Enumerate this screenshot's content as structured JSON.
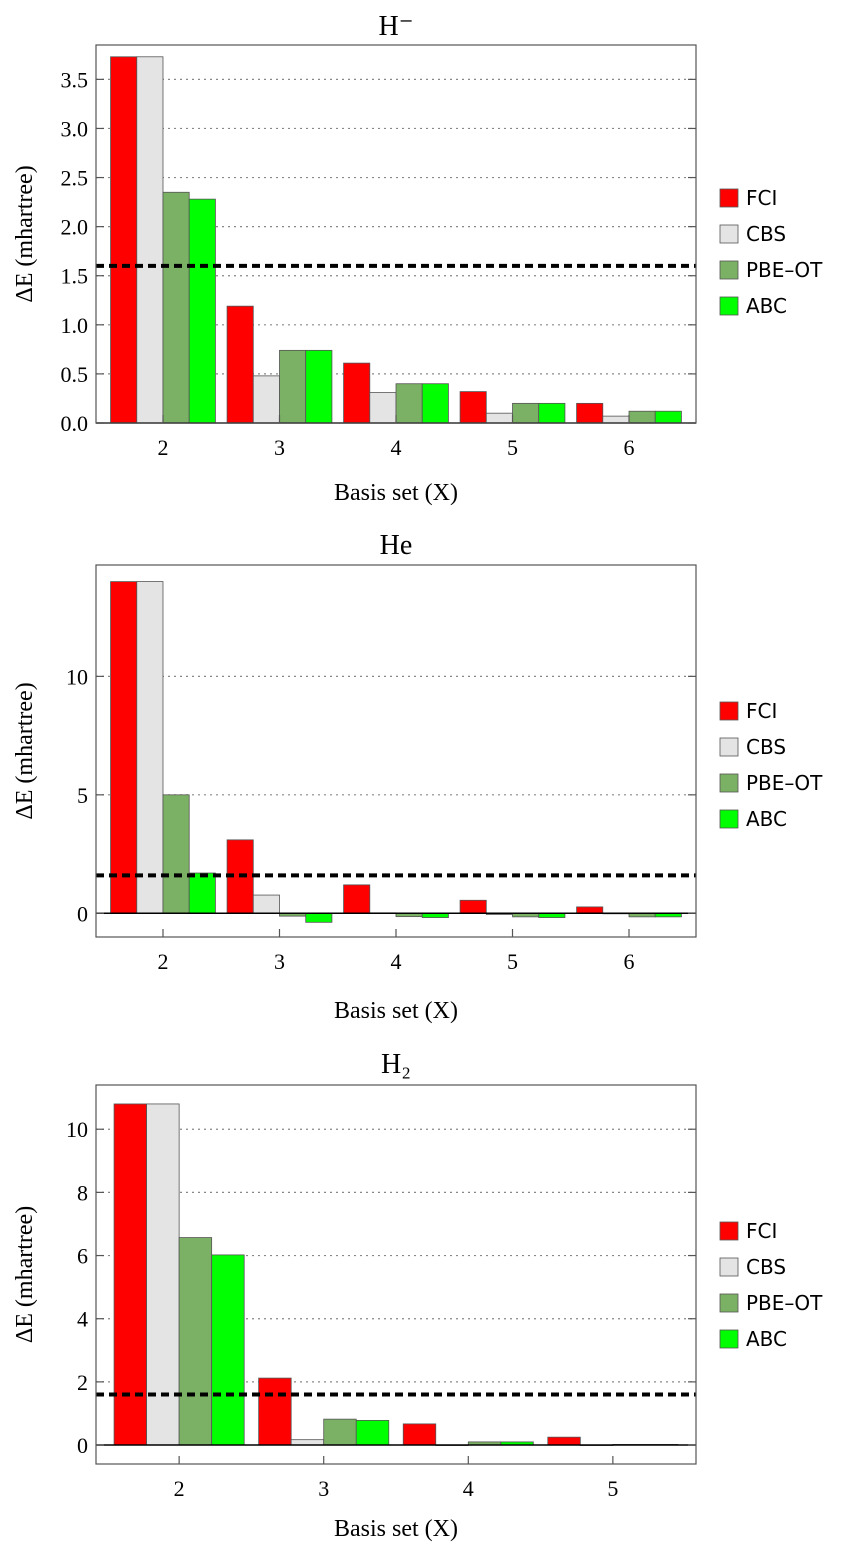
{
  "colors": {
    "FCI": "#ff0000",
    "CBS": "#e4e4e4",
    "PBE-OT": "#7bb164",
    "ABC": "#00ff00",
    "reference_line": "#000000"
  },
  "legend": [
    {
      "key": "FCI",
      "label": "FCI"
    },
    {
      "key": "CBS",
      "label": "CBS"
    },
    {
      "key": "PBE-OT",
      "label": "PBE–OT"
    },
    {
      "key": "ABC",
      "label": "ABC"
    }
  ],
  "chart_data": [
    {
      "type": "bar",
      "title": "H⁻",
      "xlabel": "Basis set (X)",
      "ylabel": "ΔE (mhartree)",
      "categories": [
        "2",
        "3",
        "4",
        "5",
        "6"
      ],
      "ylim": [
        0,
        3.85
      ],
      "yticks": [
        "0.0",
        "0.5",
        "1.0",
        "1.5",
        "2.0",
        "2.5",
        "3.0",
        "3.5"
      ],
      "ytick_values": [
        0,
        0.5,
        1.0,
        1.5,
        2.0,
        2.5,
        3.0,
        3.5
      ],
      "reference_line": 1.6,
      "grid": "horizontal dotted",
      "legend_position": "right",
      "series": [
        {
          "name": "FCI",
          "values": [
            3.73,
            1.19,
            0.61,
            0.32,
            0.2
          ]
        },
        {
          "name": "CBS",
          "values": [
            3.73,
            0.48,
            0.31,
            0.1,
            0.07
          ]
        },
        {
          "name": "PBE-OT",
          "values": [
            2.35,
            0.74,
            0.4,
            0.2,
            0.12
          ]
        },
        {
          "name": "ABC",
          "values": [
            2.28,
            0.74,
            0.4,
            0.2,
            0.12
          ]
        }
      ]
    },
    {
      "type": "bar",
      "title": "He",
      "xlabel": "Basis set (X)",
      "ylabel": "ΔE (mhartree)",
      "categories": [
        "2",
        "3",
        "4",
        "5",
        "6"
      ],
      "ylim": [
        -1.0,
        14.7
      ],
      "yticks": [
        "0",
        "5",
        "10"
      ],
      "ytick_values": [
        0,
        5,
        10
      ],
      "reference_line": 1.6,
      "grid": "horizontal dotted",
      "legend_position": "right",
      "series": [
        {
          "name": "FCI",
          "values": [
            14.0,
            3.1,
            1.2,
            0.55,
            0.27
          ]
        },
        {
          "name": "CBS",
          "values": [
            14.0,
            0.77,
            0.02,
            -0.05,
            -0.01
          ]
        },
        {
          "name": "PBE-OT",
          "values": [
            5.0,
            -0.12,
            -0.14,
            -0.15,
            -0.15
          ]
        },
        {
          "name": "ABC",
          "values": [
            1.7,
            -0.38,
            -0.18,
            -0.18,
            -0.15
          ]
        }
      ]
    },
    {
      "type": "bar",
      "title": "H₂",
      "xlabel": "Basis set (X)",
      "ylabel": "ΔE (mhartree)",
      "categories": [
        "2",
        "3",
        "4",
        "5"
      ],
      "ylim": [
        -0.6,
        11.4
      ],
      "yticks": [
        "0",
        "2",
        "4",
        "6",
        "8",
        "10"
      ],
      "ytick_values": [
        0,
        2,
        4,
        6,
        8,
        10
      ],
      "reference_line": 1.6,
      "grid": "horizontal dotted",
      "legend_position": "right",
      "series": [
        {
          "name": "FCI",
          "values": [
            10.8,
            2.12,
            0.67,
            0.25
          ]
        },
        {
          "name": "CBS",
          "values": [
            10.8,
            0.17,
            0.0,
            0.0
          ]
        },
        {
          "name": "PBE-OT",
          "values": [
            6.57,
            0.82,
            0.1,
            0.02
          ]
        },
        {
          "name": "ABC",
          "values": [
            6.02,
            0.78,
            0.1,
            0.02
          ]
        }
      ]
    }
  ]
}
